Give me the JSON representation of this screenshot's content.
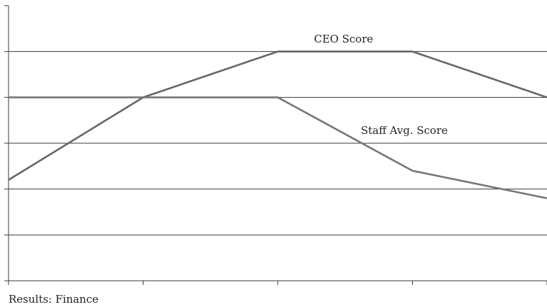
{
  "chart_data": {
    "type": "line",
    "caption": "Results: Finance",
    "x": [
      0,
      1,
      2,
      3,
      4
    ],
    "ylim": [
      0,
      6
    ],
    "grid": true,
    "series": [
      {
        "name": "CEO Score",
        "values": [
          2.2,
          4.0,
          5.0,
          5.0,
          4.0
        ],
        "color": "#666666"
      },
      {
        "name": "Staff Avg. Score",
        "values": [
          4.0,
          4.0,
          4.0,
          2.4,
          1.8
        ],
        "color": "#777777"
      }
    ]
  }
}
